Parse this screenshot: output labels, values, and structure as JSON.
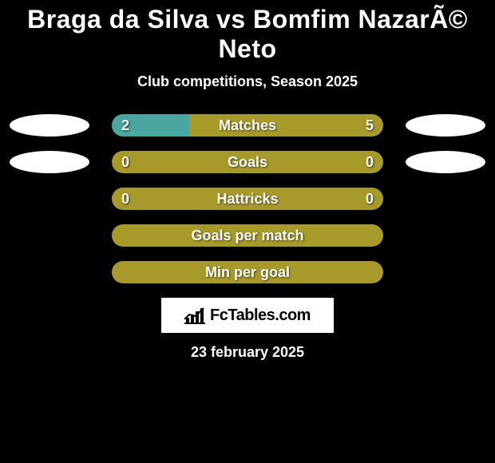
{
  "title": "Braga da Silva vs Bomfim NazarÃ© Neto",
  "subtitle": "Club competitions, Season 2025",
  "date": "23 february 2025",
  "logo_text": "FcTables.com",
  "colors": {
    "teal": "#4aa6a0",
    "olive": "#a79a2a",
    "white": "#ffffff",
    "black": "#000000"
  },
  "avatars": {
    "row0_left": true,
    "row0_right": true,
    "row1_left": true,
    "row1_right": true
  },
  "rows": [
    {
      "type": "split",
      "label": "Matches",
      "left_value": "2",
      "right_value": "5",
      "left_pct": 28.57,
      "right_pct": 71.43,
      "left_color": "#4aa6a0",
      "right_color": "#a79a2a"
    },
    {
      "type": "split",
      "label": "Goals",
      "left_value": "0",
      "right_value": "0",
      "left_pct": 50,
      "right_pct": 50,
      "left_color": "#a79a2a",
      "right_color": "#a79a2a"
    },
    {
      "type": "split",
      "label": "Hattricks",
      "left_value": "0",
      "right_value": "0",
      "left_pct": 50,
      "right_pct": 50,
      "left_color": "#a79a2a",
      "right_color": "#a79a2a"
    },
    {
      "type": "full",
      "label": "Goals per match",
      "color": "#a79a2a"
    },
    {
      "type": "full",
      "label": "Min per goal",
      "color": "#a79a2a"
    }
  ]
}
